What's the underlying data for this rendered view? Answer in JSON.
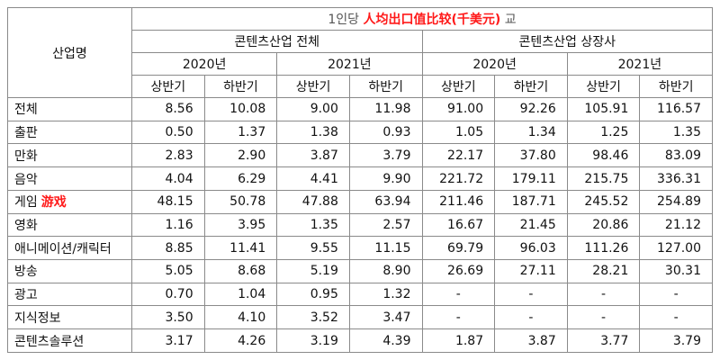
{
  "header": {
    "corner_label": "산업명",
    "title_partial": "1인당",
    "title_end": "교",
    "title_overlay": "人均出口值比较(千美元)",
    "group_left": "콘텐츠산업 전체",
    "group_right": "콘텐츠산업 상장사",
    "years": [
      "2020년",
      "2021년",
      "2020년",
      "2021년"
    ],
    "halves": [
      "상반기",
      "하반기",
      "상반기",
      "하반기",
      "상반기",
      "하반기",
      "상반기",
      "하반기"
    ]
  },
  "rows": [
    {
      "name": "전체",
      "tag": "",
      "values": [
        "8.56",
        "10.08",
        "9.00",
        "11.98",
        "91.00",
        "92.26",
        "105.91",
        "116.57"
      ]
    },
    {
      "name": "출판",
      "tag": "",
      "values": [
        "0.50",
        "1.37",
        "1.38",
        "0.93",
        "1.05",
        "1.34",
        "1.25",
        "1.35"
      ]
    },
    {
      "name": "만화",
      "tag": "",
      "values": [
        "2.83",
        "2.90",
        "3.87",
        "3.79",
        "22.17",
        "37.80",
        "98.46",
        "83.09"
      ]
    },
    {
      "name": "음악",
      "tag": "",
      "values": [
        "4.04",
        "6.29",
        "4.41",
        "9.90",
        "221.72",
        "179.11",
        "215.75",
        "336.31"
      ]
    },
    {
      "name": "게임",
      "tag": "游戏",
      "values": [
        "48.15",
        "50.78",
        "47.88",
        "63.94",
        "211.46",
        "187.71",
        "245.52",
        "254.89"
      ]
    },
    {
      "name": "영화",
      "tag": "",
      "values": [
        "1.16",
        "3.95",
        "1.35",
        "2.57",
        "16.67",
        "21.45",
        "20.86",
        "21.12"
      ]
    },
    {
      "name": "애니메이션/캐릭터",
      "tag": "",
      "values": [
        "8.85",
        "11.41",
        "9.55",
        "11.15",
        "69.79",
        "96.03",
        "111.26",
        "127.00"
      ]
    },
    {
      "name": "방송",
      "tag": "",
      "values": [
        "5.05",
        "8.68",
        "5.19",
        "8.90",
        "26.69",
        "27.11",
        "28.21",
        "30.31"
      ]
    },
    {
      "name": "광고",
      "tag": "",
      "values": [
        "0.70",
        "1.04",
        "0.95",
        "1.32",
        "-",
        "-",
        "-",
        "-"
      ]
    },
    {
      "name": "지식정보",
      "tag": "",
      "values": [
        "3.50",
        "4.10",
        "3.52",
        "3.47",
        "-",
        "-",
        "-",
        "-"
      ]
    },
    {
      "name": "콘텐츠솔루션",
      "tag": "",
      "values": [
        "3.17",
        "4.26",
        "3.19",
        "4.39",
        "1.87",
        "3.87",
        "3.77",
        "3.79"
      ]
    }
  ],
  "colors": {
    "overlay_text": "#ff1a1a",
    "grid_line": "#8a8a8a"
  }
}
